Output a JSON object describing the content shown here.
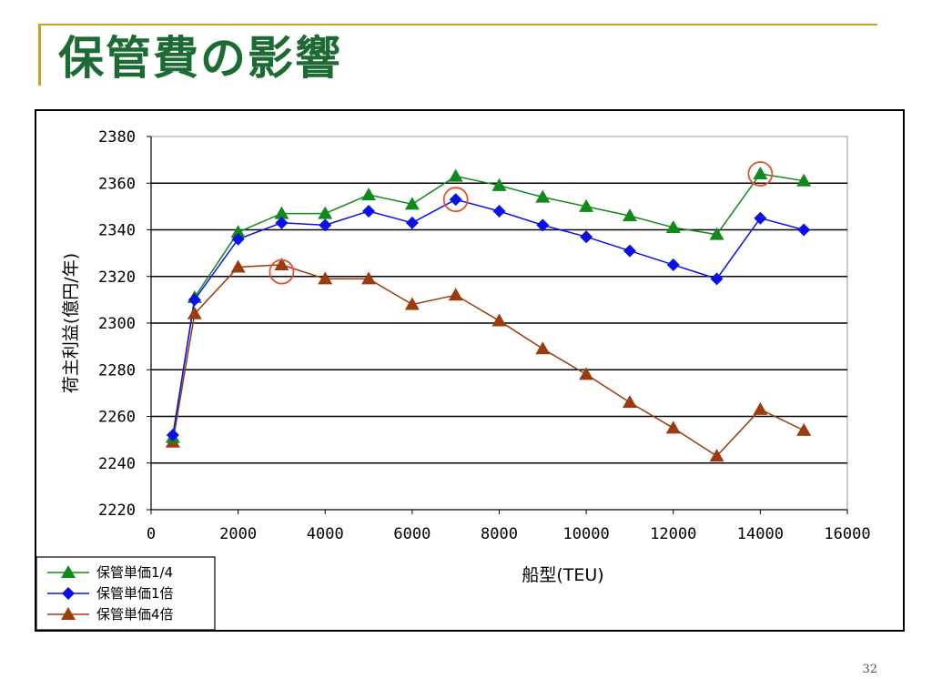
{
  "slide": {
    "title": "保管費の影響",
    "page_number": "32",
    "accent_color": "#c9a227",
    "title_color": "#1c6b32"
  },
  "chart_data": {
    "type": "line",
    "title": "",
    "xlabel": "船型(TEU)",
    "ylabel": "荷主利益(億円/年)",
    "xlim": [
      0,
      16000
    ],
    "ylim": [
      2220,
      2380
    ],
    "xticks": [
      0,
      2000,
      4000,
      6000,
      8000,
      10000,
      12000,
      14000,
      16000
    ],
    "yticks": [
      2220,
      2240,
      2260,
      2280,
      2300,
      2320,
      2340,
      2360,
      2380
    ],
    "grid": "horizontal",
    "legend_position": "bottom-left",
    "x": [
      500,
      1000,
      2000,
      3000,
      4000,
      5000,
      6000,
      7000,
      8000,
      9000,
      10000,
      11000,
      12000,
      13000,
      14000,
      15000
    ],
    "series": [
      {
        "name": "保管単価1/4",
        "color": "#108a1a",
        "marker": "triangle",
        "values": [
          2251,
          2311,
          2339,
          2347,
          2347,
          2355,
          2351,
          2363,
          2359,
          2354,
          2350,
          2346,
          2341,
          2338,
          2364,
          2361
        ]
      },
      {
        "name": "保管単価1倍",
        "color": "#0a10e6",
        "marker": "diamond",
        "values": [
          2252,
          2310,
          2336,
          2343,
          2342,
          2348,
          2343,
          2353,
          2348,
          2342,
          2337,
          2331,
          2325,
          2319,
          2345,
          2340
        ]
      },
      {
        "name": "保管単価4倍",
        "color": "#9b3b0e",
        "marker": "triangle",
        "values": [
          2249,
          2304,
          2324,
          2325,
          2319,
          2319,
          2308,
          2312,
          2301,
          2289,
          2278,
          2266,
          2255,
          2243,
          2263,
          2254
        ]
      }
    ],
    "annotations": [
      {
        "type": "circle",
        "x": 3000,
        "y": 2322,
        "color": "#e8502a"
      },
      {
        "type": "circle",
        "x": 7000,
        "y": 2353,
        "color": "#e8502a"
      },
      {
        "type": "circle",
        "x": 14000,
        "y": 2364,
        "color": "#e8502a"
      }
    ]
  }
}
